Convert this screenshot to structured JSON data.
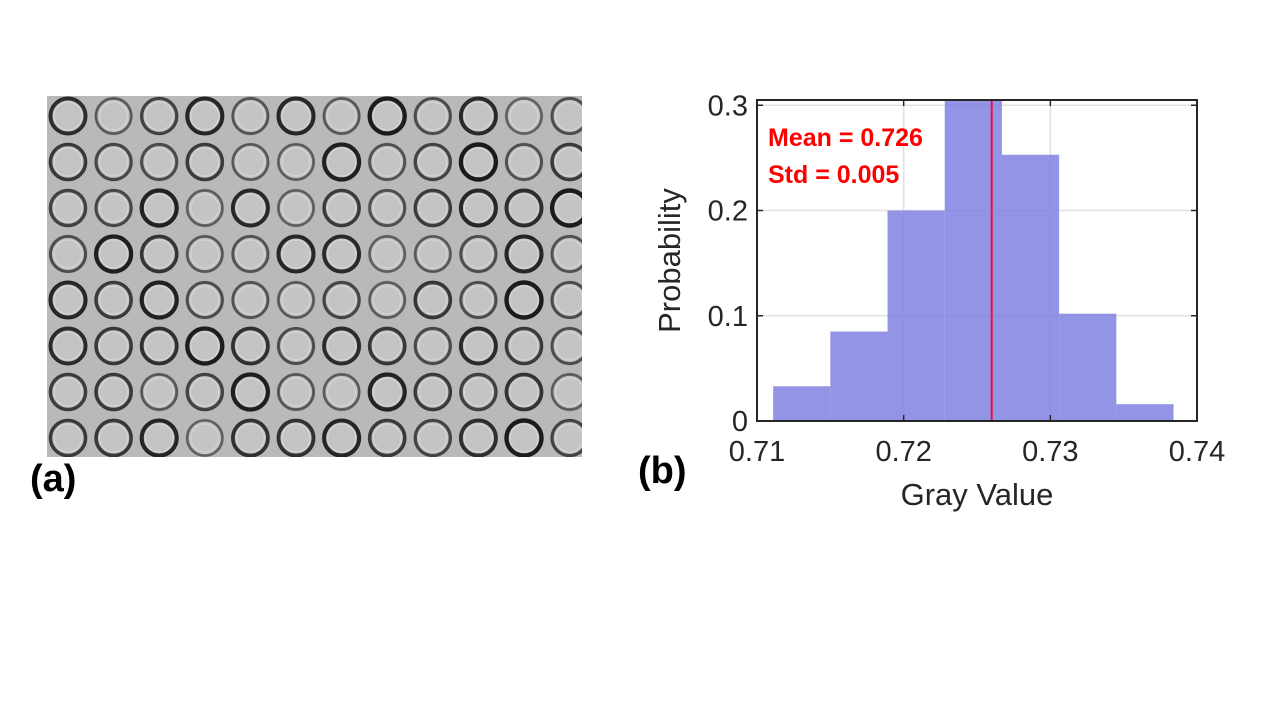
{
  "panel_labels": {
    "a": "(a)",
    "b": "(b)"
  },
  "plate_image": {
    "rows": 8,
    "columns": 12,
    "background": "#b9b9b9",
    "well_fill": "#c4c4c4",
    "well_ring": "#1a1a1a"
  },
  "chart_data": {
    "type": "bar",
    "title": "",
    "xlabel": "Gray Value",
    "ylabel": "Probability",
    "xlim": [
      0.71,
      0.74
    ],
    "ylim": [
      0,
      0.305
    ],
    "xticks": [
      0.71,
      0.72,
      0.73,
      0.74
    ],
    "xtick_labels": [
      "0.71",
      "0.72",
      "0.73",
      "0.74"
    ],
    "yticks": [
      0,
      0.1,
      0.2,
      0.3
    ],
    "ytick_labels": [
      "0",
      "0.1",
      "0.2",
      "0.3"
    ],
    "grid": true,
    "bin_edges": [
      0.7111,
      0.715,
      0.7189,
      0.7228,
      0.7267,
      0.7306,
      0.7345,
      0.7384
    ],
    "values": [
      0.033,
      0.085,
      0.2,
      0.31,
      0.253,
      0.102,
      0.016
    ],
    "bar_color": "#7b7de0",
    "mean_line": {
      "x": 0.726,
      "color": "#e0143c"
    },
    "annotations": [
      {
        "text": "Mean = 0.726",
        "color": "#ff0000"
      },
      {
        "text": "Std = 0.005",
        "color": "#ff0000"
      }
    ]
  }
}
